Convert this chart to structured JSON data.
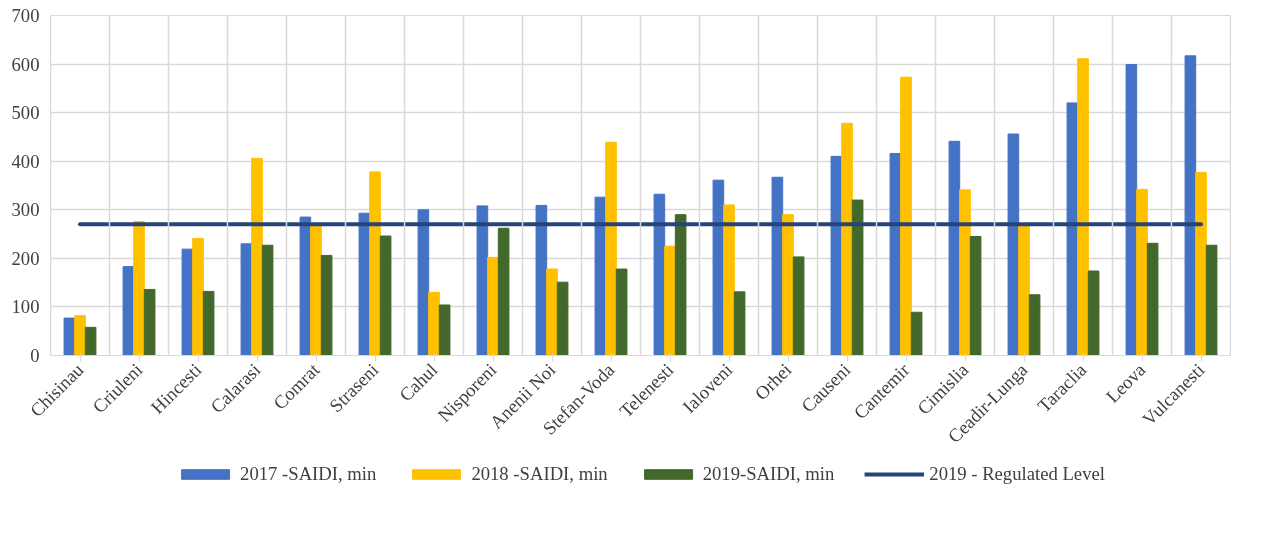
{
  "chart_data": {
    "type": "bar",
    "categories": [
      "Chisinau",
      "Criuleni",
      "Hincesti",
      "Calarasi",
      "Comrat",
      "Straseni",
      "Cahul",
      "Nisporeni",
      "Anenii Noi",
      "Stefan-Voda",
      "Telenesti",
      "Ialoveni",
      "Orhei",
      "Causeni",
      "Cantemir",
      "Cimislia",
      "Ceadir-Lunga",
      "Taraclia",
      "Leova",
      "Vulcanesti"
    ],
    "series": [
      {
        "name": "2017 -SAIDI, min",
        "color": "#4472c4",
        "values": [
          77,
          183,
          219,
          230,
          285,
          293,
          300,
          308,
          309,
          326,
          332,
          361,
          367,
          410,
          416,
          441,
          456,
          520,
          599,
          617
        ]
      },
      {
        "name": "2018 -SAIDI, min",
        "color": "#ffc000",
        "values": [
          82,
          276,
          241,
          406,
          270,
          378,
          130,
          202,
          178,
          439,
          225,
          310,
          290,
          478,
          573,
          341,
          268,
          611,
          342,
          377
        ]
      },
      {
        "name": "2019-SAIDI, min",
        "color": "#43682b",
        "values": [
          58,
          136,
          132,
          227,
          206,
          246,
          104,
          262,
          151,
          178,
          290,
          131,
          203,
          320,
          89,
          245,
          125,
          174,
          231,
          227
        ]
      },
      {
        "name": "2019 - Regulated Level",
        "color": "#264478",
        "type": "line",
        "values": [
          270,
          270,
          270,
          270,
          270,
          270,
          270,
          270,
          270,
          270,
          270,
          270,
          270,
          270,
          270,
          270,
          270,
          270,
          270,
          270
        ]
      }
    ],
    "ylim": [
      0,
      700
    ],
    "yticks": [
      0,
      100,
      200,
      300,
      400,
      500,
      600,
      700
    ],
    "grid": true,
    "legend": "bottom"
  }
}
